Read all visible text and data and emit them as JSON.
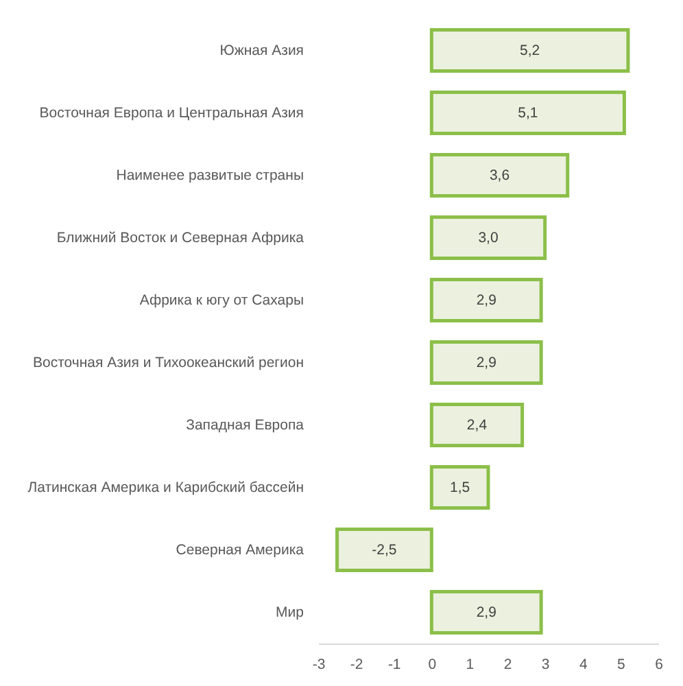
{
  "chart_data": {
    "type": "bar",
    "orientation": "horizontal",
    "categories": [
      "Южная Азия",
      "Восточная Европа и Центральная Азия",
      "Наименее развитые страны",
      "Ближний  Восток и Северная Африка",
      "Африка к югу от Сахары",
      "Восточная Азия и Тихоокеанский регион",
      "Западная Европа",
      "Латинская Америка и Карибский бассейн",
      "Северная Америка",
      "Мир"
    ],
    "values": [
      5.2,
      5.1,
      3.6,
      3.0,
      2.9,
      2.9,
      2.4,
      1.5,
      -2.5,
      2.9
    ],
    "value_labels": [
      "5,2",
      "5,1",
      "3,6",
      "3,0",
      "2,9",
      "2,9",
      "2,4",
      "1,5",
      "-2,5",
      "2,9"
    ],
    "color": "#ebf1de",
    "xlim": [
      -3,
      6
    ],
    "xticks": [
      -3,
      -2,
      -1,
      0,
      1,
      2,
      3,
      4,
      5,
      6
    ],
    "grid": false
  }
}
